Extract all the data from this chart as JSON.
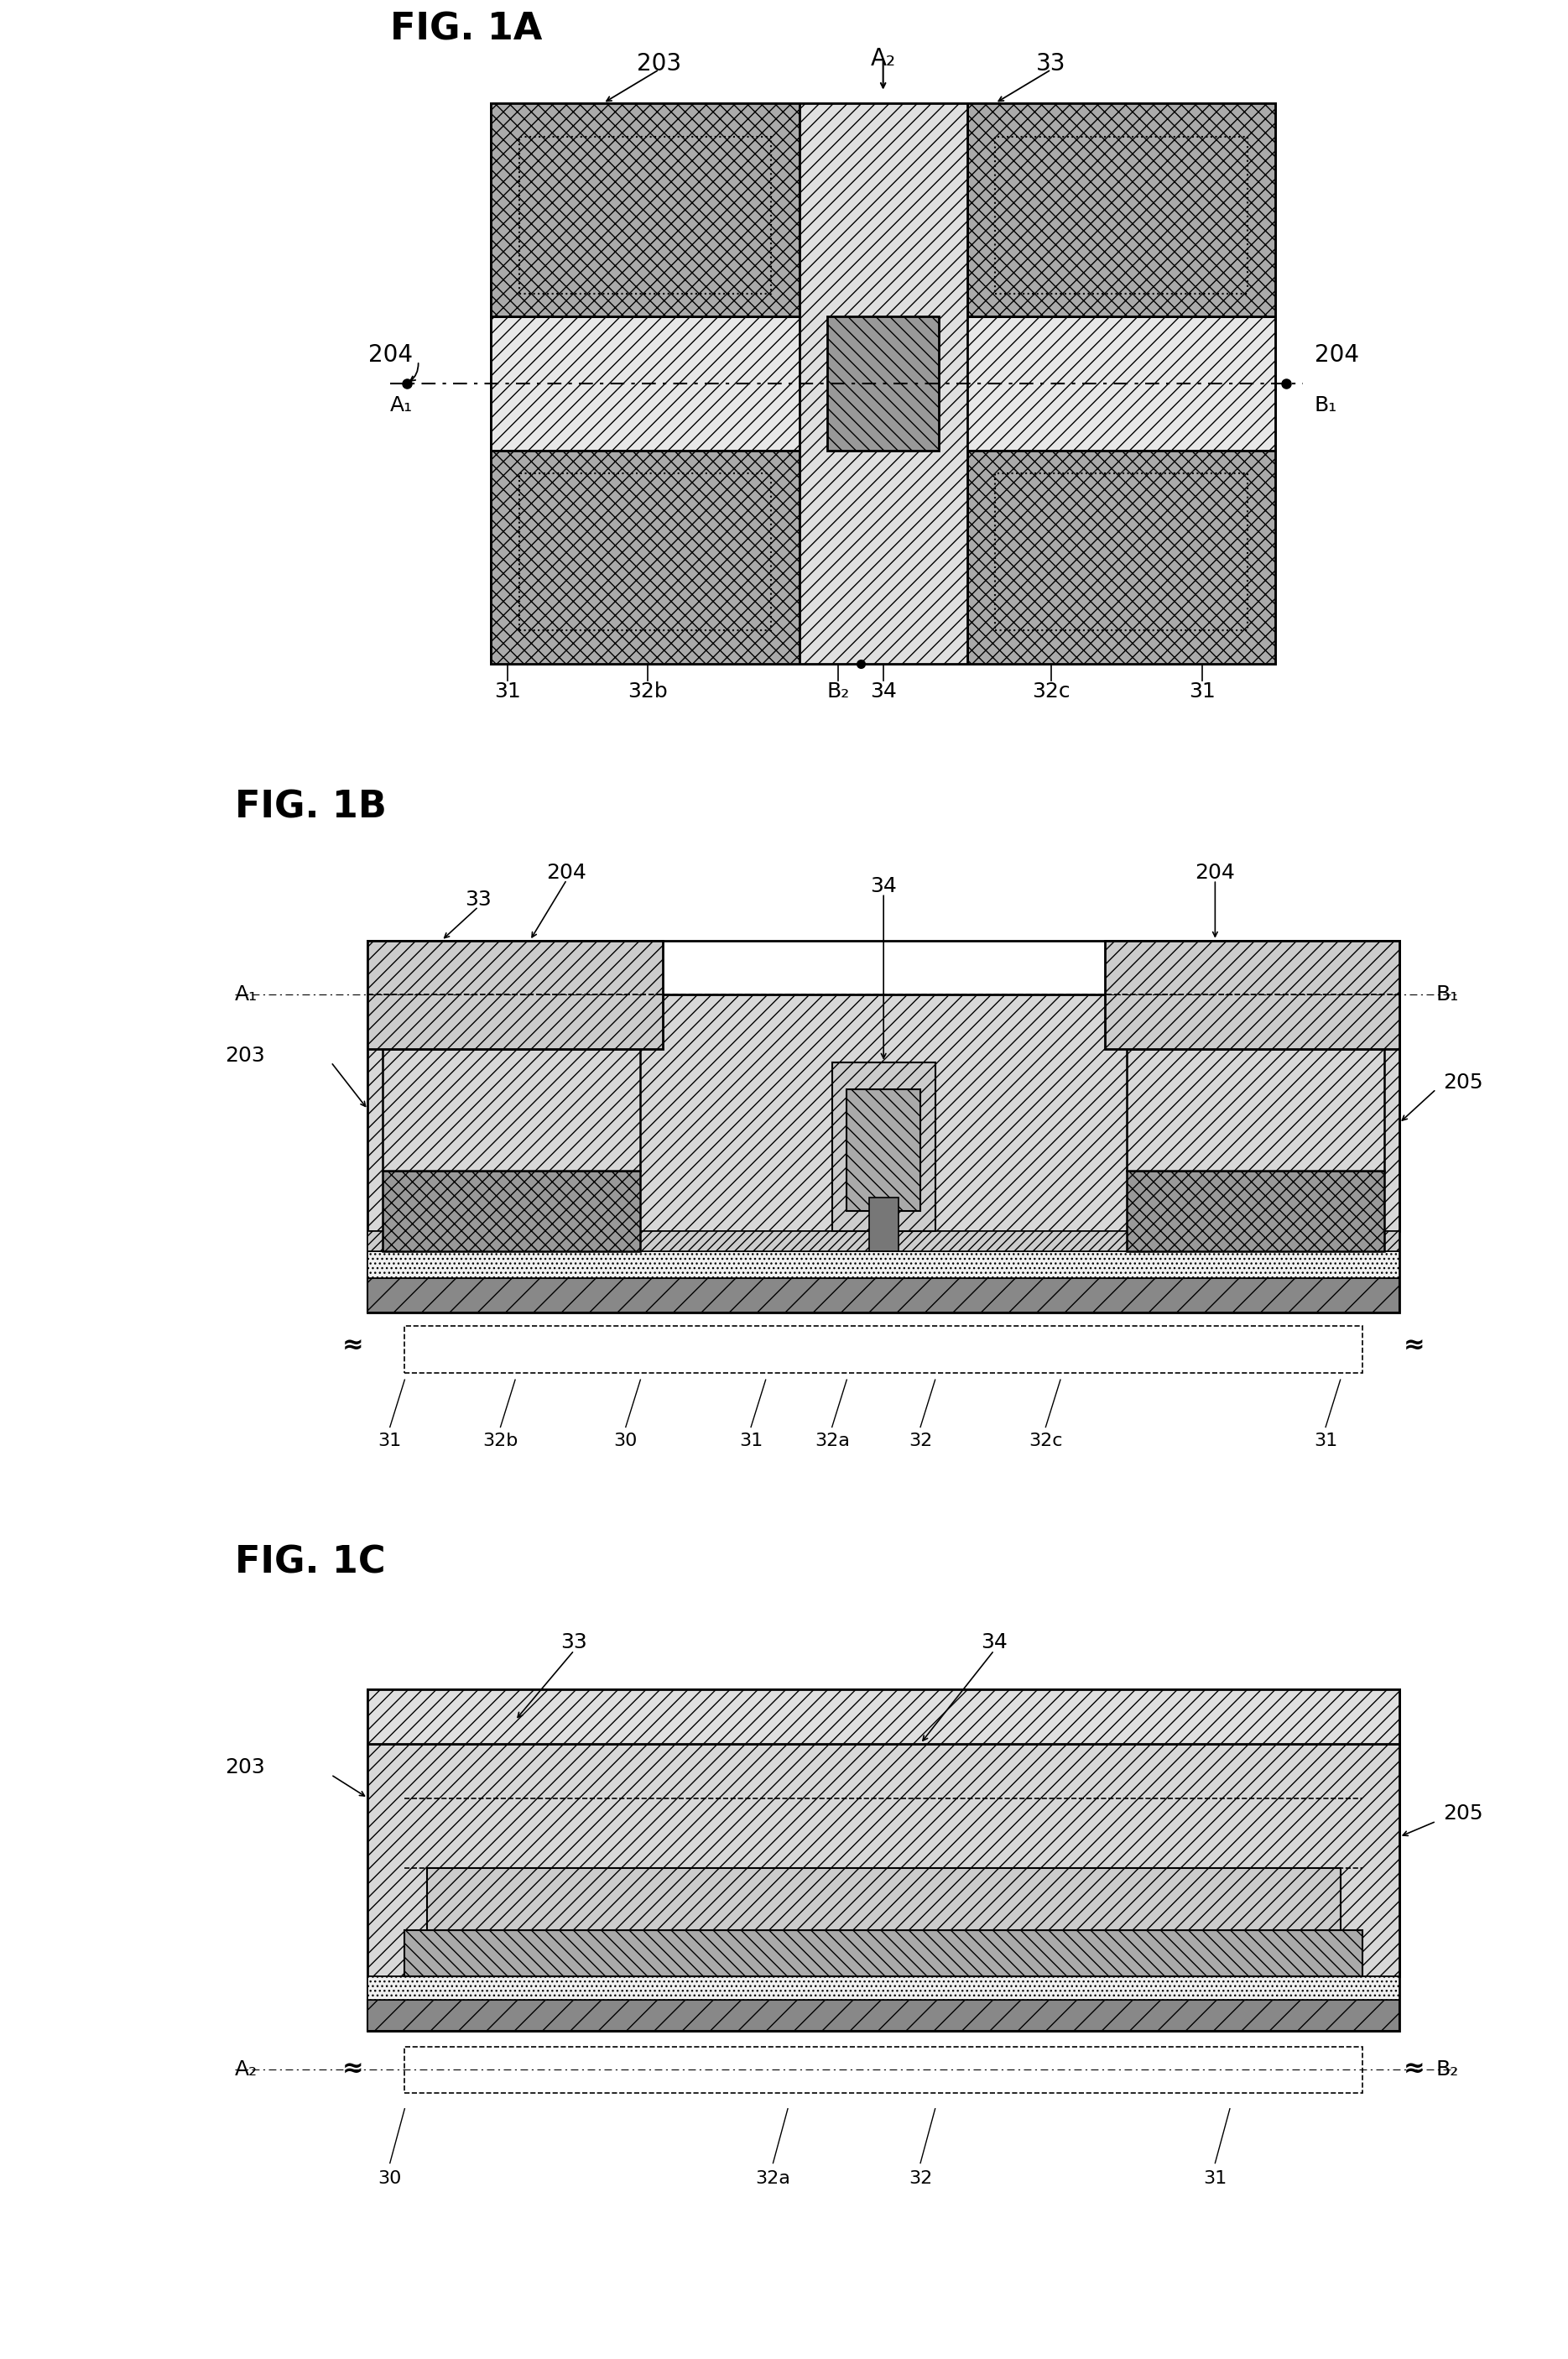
{
  "fig_width": 18.69,
  "fig_height": 28.11,
  "bg_color": "#ffffff",
  "fig1a_label": "FIG. 1A",
  "fig1b_label": "FIG. 1B",
  "fig1c_label": "FIG. 1C",
  "label_fontsize": 32,
  "annot_fontsize": 20,
  "small_fontsize": 18,
  "colors": {
    "outer_hatch_fill": "#cccccc",
    "sd_cross_fill": "#888888",
    "gate_fill": "#666666",
    "insulator_fill": "#e8e8e8",
    "channel_fill": "#d4d4d4",
    "white": "#ffffff",
    "light_hatch_fill": "#e0e0e0",
    "dark_fill": "#555555",
    "medium_fill": "#aaaaaa",
    "gate_insulator_fill": "#f0f0f0"
  }
}
